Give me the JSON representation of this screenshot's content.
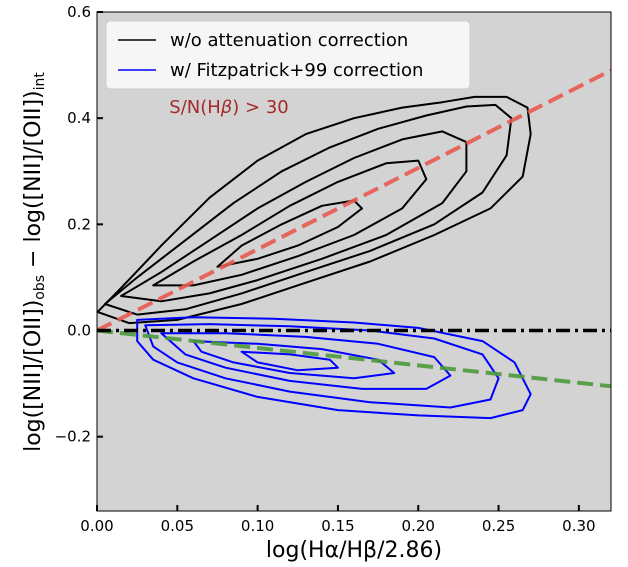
{
  "chart_data": {
    "type": "contour",
    "xlabel": "log(Hα/Hβ/2.86)",
    "ylabel": "log([NII]/[OII])obs − log([NII]/[OII])int",
    "xlim": [
      0.0,
      0.32
    ],
    "ylim": [
      -0.34,
      0.6
    ],
    "xticks": [
      0.0,
      0.05,
      0.1,
      0.15,
      0.2,
      0.25,
      0.3
    ],
    "xtick_labels": [
      "0.00",
      "0.05",
      "0.10",
      "0.15",
      "0.20",
      "0.25",
      "0.30"
    ],
    "yticks": [
      -0.2,
      0.0,
      0.2,
      0.4,
      0.6
    ],
    "ytick_labels": [
      "−0.2",
      "0.0",
      "0.2",
      "0.4",
      "0.6"
    ],
    "background_color": "#d3d3d3",
    "grid": false,
    "legend": {
      "placement": "top-left",
      "entries": [
        {
          "label": "w/o attenuation correction",
          "color": "#000000"
        },
        {
          "label": "w/ Fitzpatrick+99 correction",
          "color": "#0000ff"
        }
      ]
    },
    "annotation": {
      "text": "S/N(Hβ) > 30",
      "color": "#a52a2a",
      "x": 0.045,
      "y": 0.41
    },
    "lines": [
      {
        "style": "dashed",
        "color": "#e8594f",
        "points": [
          [
            0.0,
            0.0
          ],
          [
            0.32,
            0.49
          ]
        ]
      },
      {
        "style": "dashed",
        "color": "#4c9a3c",
        "points": [
          [
            0.0,
            0.0
          ],
          [
            0.32,
            -0.105
          ]
        ]
      },
      {
        "style": "dash-dot",
        "color": "#000000",
        "points": [
          [
            0.0,
            0.0
          ],
          [
            0.32,
            0.0
          ]
        ]
      }
    ],
    "series": [
      {
        "color": "#000000",
        "contours": [
          [
            [
              0.0004,
              0.035
            ],
            [
              0.02,
              0.014
            ],
            [
              0.05,
              0.02
            ],
            [
              0.09,
              0.05
            ],
            [
              0.13,
              0.09
            ],
            [
              0.17,
              0.13
            ],
            [
              0.21,
              0.18
            ],
            [
              0.245,
              0.23
            ],
            [
              0.265,
              0.29
            ],
            [
              0.27,
              0.37
            ],
            [
              0.268,
              0.42
            ],
            [
              0.255,
              0.44
            ],
            [
              0.235,
              0.44
            ],
            [
              0.215,
              0.43
            ],
            [
              0.19,
              0.42
            ],
            [
              0.16,
              0.4
            ],
            [
              0.13,
              0.37
            ],
            [
              0.1,
              0.32
            ],
            [
              0.07,
              0.25
            ],
            [
              0.04,
              0.16
            ],
            [
              0.015,
              0.08
            ]
          ],
          [
            [
              0.005,
              0.05
            ],
            [
              0.025,
              0.03
            ],
            [
              0.055,
              0.04
            ],
            [
              0.09,
              0.07
            ],
            [
              0.13,
              0.11
            ],
            [
              0.17,
              0.15
            ],
            [
              0.21,
              0.2
            ],
            [
              0.24,
              0.26
            ],
            [
              0.255,
              0.33
            ],
            [
              0.258,
              0.4
            ],
            [
              0.248,
              0.425
            ],
            [
              0.23,
              0.422
            ],
            [
              0.205,
              0.405
            ],
            [
              0.175,
              0.38
            ],
            [
              0.145,
              0.345
            ],
            [
              0.115,
              0.3
            ],
            [
              0.085,
              0.24
            ],
            [
              0.055,
              0.17
            ],
            [
              0.025,
              0.1
            ]
          ],
          [
            [
              0.015,
              0.065
            ],
            [
              0.04,
              0.055
            ],
            [
              0.07,
              0.07
            ],
            [
              0.1,
              0.095
            ],
            [
              0.14,
              0.135
            ],
            [
              0.18,
              0.18
            ],
            [
              0.215,
              0.24
            ],
            [
              0.23,
              0.3
            ],
            [
              0.23,
              0.355
            ],
            [
              0.215,
              0.375
            ],
            [
              0.19,
              0.36
            ],
            [
              0.16,
              0.325
            ],
            [
              0.13,
              0.28
            ],
            [
              0.1,
              0.23
            ],
            [
              0.07,
              0.17
            ],
            [
              0.04,
              0.11
            ]
          ],
          [
            [
              0.035,
              0.085
            ],
            [
              0.06,
              0.085
            ],
            [
              0.09,
              0.105
            ],
            [
              0.125,
              0.14
            ],
            [
              0.16,
              0.18
            ],
            [
              0.19,
              0.23
            ],
            [
              0.205,
              0.285
            ],
            [
              0.2,
              0.32
            ],
            [
              0.18,
              0.315
            ],
            [
              0.15,
              0.28
            ],
            [
              0.12,
              0.235
            ],
            [
              0.09,
              0.18
            ],
            [
              0.06,
              0.13
            ]
          ],
          [
            [
              0.075,
              0.12
            ],
            [
              0.1,
              0.135
            ],
            [
              0.125,
              0.16
            ],
            [
              0.15,
              0.195
            ],
            [
              0.165,
              0.23
            ],
            [
              0.16,
              0.245
            ],
            [
              0.14,
              0.235
            ],
            [
              0.115,
              0.2
            ],
            [
              0.09,
              0.16
            ]
          ]
        ]
      },
      {
        "color": "#0000ff",
        "contours": [
          [
            [
              0.025,
              0.02
            ],
            [
              0.06,
              0.025
            ],
            [
              0.11,
              0.022
            ],
            [
              0.16,
              0.015
            ],
            [
              0.2,
              0.005
            ],
            [
              0.24,
              -0.02
            ],
            [
              0.26,
              -0.06
            ],
            [
              0.27,
              -0.12
            ],
            [
              0.265,
              -0.15
            ],
            [
              0.245,
              -0.165
            ],
            [
              0.2,
              -0.16
            ],
            [
              0.15,
              -0.15
            ],
            [
              0.1,
              -0.125
            ],
            [
              0.06,
              -0.09
            ],
            [
              0.035,
              -0.055
            ],
            [
              0.025,
              -0.02
            ]
          ],
          [
            [
              0.03,
              0.01
            ],
            [
              0.07,
              0.012
            ],
            [
              0.12,
              0.008
            ],
            [
              0.17,
              0.0
            ],
            [
              0.21,
              -0.015
            ],
            [
              0.24,
              -0.045
            ],
            [
              0.25,
              -0.09
            ],
            [
              0.245,
              -0.13
            ],
            [
              0.22,
              -0.145
            ],
            [
              0.17,
              -0.135
            ],
            [
              0.12,
              -0.115
            ],
            [
              0.08,
              -0.09
            ],
            [
              0.05,
              -0.06
            ],
            [
              0.035,
              -0.03
            ]
          ],
          [
            [
              0.04,
              -0.005
            ],
            [
              0.08,
              -0.005
            ],
            [
              0.13,
              -0.012
            ],
            [
              0.175,
              -0.025
            ],
            [
              0.21,
              -0.05
            ],
            [
              0.22,
              -0.085
            ],
            [
              0.205,
              -0.11
            ],
            [
              0.165,
              -0.11
            ],
            [
              0.12,
              -0.095
            ],
            [
              0.08,
              -0.07
            ],
            [
              0.055,
              -0.045
            ]
          ],
          [
            [
              0.06,
              -0.02
            ],
            [
              0.1,
              -0.025
            ],
            [
              0.14,
              -0.035
            ],
            [
              0.175,
              -0.055
            ],
            [
              0.185,
              -0.08
            ],
            [
              0.16,
              -0.09
            ],
            [
              0.12,
              -0.08
            ],
            [
              0.085,
              -0.06
            ],
            [
              0.065,
              -0.04
            ]
          ],
          [
            [
              0.09,
              -0.04
            ],
            [
              0.12,
              -0.045
            ],
            [
              0.145,
              -0.055
            ],
            [
              0.15,
              -0.07
            ],
            [
              0.125,
              -0.075
            ],
            [
              0.1,
              -0.06
            ]
          ]
        ]
      }
    ]
  }
}
